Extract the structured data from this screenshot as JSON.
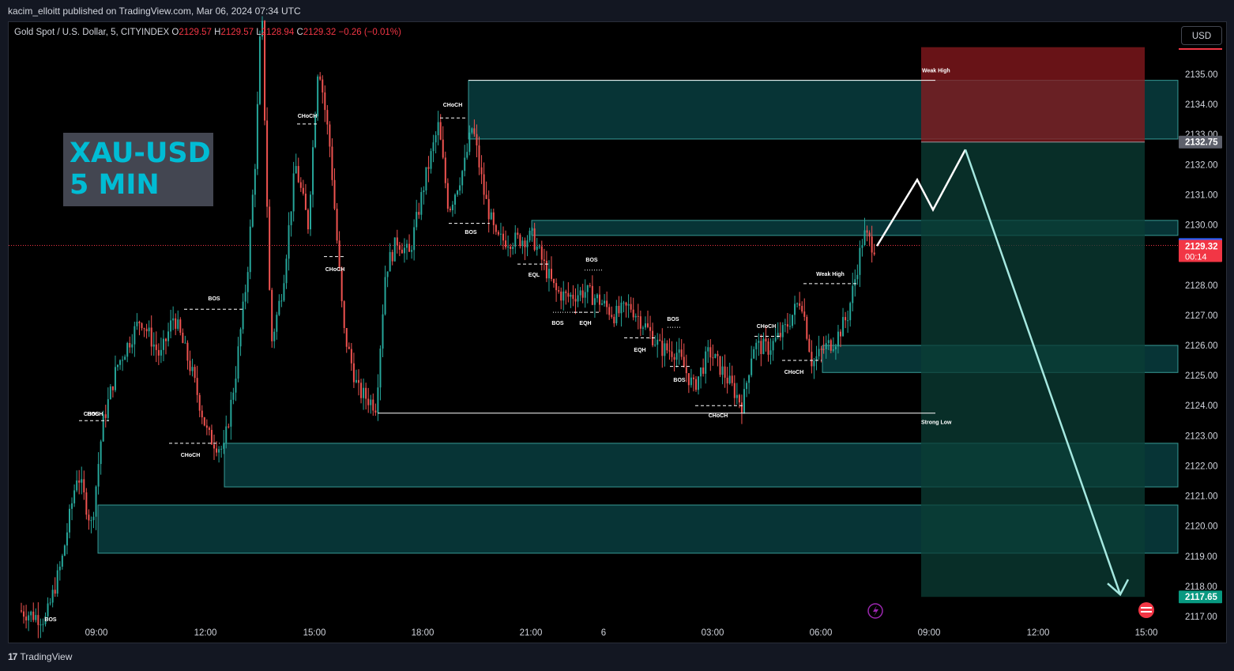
{
  "header": {
    "publisher_line": "kacim_elloitt published on TradingView.com, Mar 06, 2024 07:34 UTC"
  },
  "legend": {
    "symbol": "Gold Spot / U.S. Dollar, 5, CITYINDEX",
    "o_label": "O",
    "o_value": "2129.57",
    "h_label": "H",
    "h_value": "2129.57",
    "l_label": "L",
    "l_value": "2128.94",
    "c_label": "C",
    "c_value": "2129.32",
    "change": "−0.26 (−0.01%)"
  },
  "overlay_title": {
    "line1": "XAU-USD",
    "line2": "5 MIN"
  },
  "currency_button": "USD",
  "footer": {
    "brand": "TradingView"
  },
  "colors": {
    "background": "#000000",
    "bull": "#26a69a",
    "bear": "#ef5350",
    "zone_fill": "#0d5e63",
    "zone_border": "#4dd0c9",
    "profit_fill": "#0b3d35",
    "stop_fill": "#8b1a1f",
    "projection_white": "#ffffff",
    "projection_teal": "#a5e8e0",
    "axis_text": "#d1d4dc",
    "badge_blue": "#2962ff",
    "badge_red": "#f23645"
  },
  "chart_data": {
    "type": "candlestick",
    "x_ticks": [
      "09:00",
      "12:00",
      "15:00",
      "18:00",
      "21:00",
      "6",
      "03:00",
      "06:00",
      "09:00",
      "12:00",
      "15:00"
    ],
    "y_ticks": [
      "2117.00",
      "2118.00",
      "2119.00",
      "2120.00",
      "2121.00",
      "2122.00",
      "2123.00",
      "2124.00",
      "2125.00",
      "2126.00",
      "2127.00",
      "2128.00",
      "2129.00",
      "2130.00",
      "2131.00",
      "2132.00",
      "2133.00",
      "2134.00",
      "2135.00"
    ],
    "ylim": [
      2116.8,
      2135.8
    ],
    "price_badges": [
      {
        "value": 2132.75,
        "label": "2132.75",
        "style": "grey"
      },
      {
        "value": 2129.35,
        "label": "2129.35",
        "style": "blue"
      },
      {
        "value": 2129.32,
        "label": "2129.32",
        "style": "red",
        "sub": "00:14"
      },
      {
        "value": 2117.65,
        "label": "2117.65",
        "style": "green"
      }
    ],
    "current_price": 2129.32,
    "demand_zones": [
      {
        "from": 2120.7,
        "to": 2119.1,
        "start": "08:45"
      },
      {
        "from": 2122.75,
        "to": 2121.3,
        "start": "12:40"
      },
      {
        "from": 2126.0,
        "to": 2125.1,
        "start": "06:00"
      }
    ],
    "supply_zones": [
      {
        "from": 2134.8,
        "to": 2132.85,
        "start": "19:15"
      },
      {
        "from": 2130.15,
        "to": 2129.65,
        "start": "21:00"
      }
    ],
    "position": {
      "type": "short",
      "entry": 2132.75,
      "stop": 2135.9,
      "target": 2117.65
    },
    "structure_labels": [
      "BOS",
      "BOS",
      "CHoCH",
      "CHoCH",
      "BOS",
      "CHoCH",
      "CHoCH",
      "CHoCH",
      "BOS",
      "EQL",
      "BOS",
      "EQH",
      "BOS",
      "EQH",
      "BOS",
      "BOS",
      "CHoCH",
      "CHoCH",
      "CHoCH",
      "Weak High",
      "Strong Low"
    ],
    "key_levels": [
      {
        "name": "Weak High",
        "value": 2134.8
      },
      {
        "name": "Strong Low",
        "value": 2123.75
      }
    ],
    "projection_path": [
      2129.3,
      2131.5,
      2130.5,
      2132.5,
      2117.65
    ]
  }
}
